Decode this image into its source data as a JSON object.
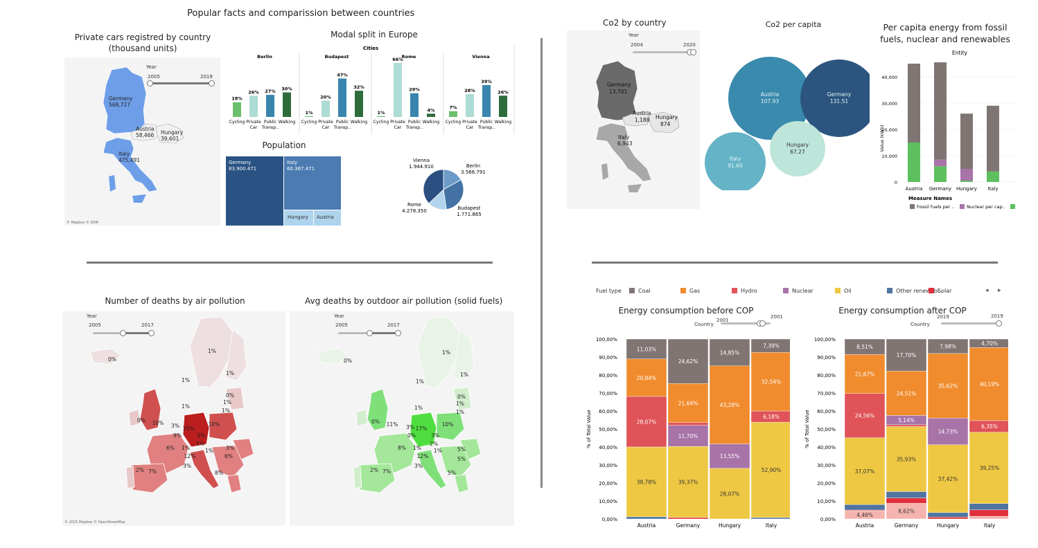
{
  "header_left": "Popular facts and comparission between countries",
  "cars": {
    "title_line1": "Private cars registred by country",
    "title_line2": "(thousand units)",
    "year_label": "Year",
    "year_min": "2005",
    "year_max": "2019",
    "labels": [
      {
        "country": "Germany",
        "value": "568,727"
      },
      {
        "country": "Austria",
        "value": "58,466"
      },
      {
        "country": "Hungary",
        "value": "39,601"
      },
      {
        "country": "Italy",
        "value": "475,491"
      }
    ],
    "credit": "© Mapbox © OSM"
  },
  "modal": {
    "title": "Modal split in Europe",
    "header": "Cities",
    "cities": [
      {
        "name": "Berlin",
        "values": [
          18,
          26,
          27,
          30
        ]
      },
      {
        "name": "Budapest",
        "values": [
          1,
          20,
          47,
          32
        ]
      },
      {
        "name": "Rome",
        "values": [
          1,
          66,
          29,
          4
        ]
      },
      {
        "name": "Vienna",
        "values": [
          7,
          28,
          39,
          26
        ]
      }
    ],
    "modes": [
      "Cycling",
      "Private Car",
      "Public Transp..",
      "Walking"
    ],
    "mode_lines": [
      [
        "Cycling"
      ],
      [
        "Private",
        "Car"
      ],
      [
        "Public",
        "Transp.."
      ],
      [
        "Walking"
      ]
    ],
    "colors": [
      "#6cbf6a",
      "#acdcd4",
      "#3a85ae",
      "#2e6b3d"
    ]
  },
  "population": {
    "title": "Population",
    "blocks": [
      {
        "name": "Germany",
        "value": "83.900.471"
      },
      {
        "name": "Italy",
        "value": "60.367.471"
      },
      {
        "name": "Hungary",
        "value": ""
      },
      {
        "name": "Austria",
        "value": ""
      }
    ],
    "pie": [
      {
        "name": "Vienna",
        "value": "1.944.910",
        "num": 1944910,
        "color": "#6c9bc8"
      },
      {
        "name": "Berlin",
        "value": "3.566.791",
        "num": 3566791,
        "color": "#4472a5"
      },
      {
        "name": "Budapest",
        "value": "1.771.865",
        "num": 1771865,
        "color": "#b1d3ec"
      },
      {
        "name": "Rome",
        "value": "4.278.350",
        "num": 4278350,
        "color": "#2a4f80"
      }
    ]
  },
  "co2_country": {
    "title": "Co2  by country",
    "year_label": "Year",
    "year_min": "2004",
    "year_max": "2020",
    "labels": [
      {
        "country": "Germany",
        "value": "13,701"
      },
      {
        "country": "Austria",
        "value": "1,188"
      },
      {
        "country": "Hungary",
        "value": "874"
      },
      {
        "country": "Italy",
        "value": "6,943"
      }
    ]
  },
  "co2_capita": {
    "title": "Co2 per capita",
    "bubbles": [
      {
        "name": "Austria",
        "value": "107.93",
        "color": "#3a8aad"
      },
      {
        "name": "Germany",
        "value": "131.51",
        "color": "#2b557f"
      },
      {
        "name": "Italy",
        "value": "91.60",
        "color": "#64b3c6"
      },
      {
        "name": "Hungary",
        "value": "67.27",
        "color": "#bde5da"
      }
    ]
  },
  "energy_capita": {
    "title_line1": "Per capita energy from fossil",
    "title_line2": "fuels, nuclear and renewables",
    "entity_label": "Entity",
    "ylabel": "Value (kWh)",
    "yticks": [
      "0",
      "10,000",
      "20,000",
      "30,000",
      "40,000"
    ],
    "countries": [
      "Austria",
      "Germany",
      "Hungary",
      "Italy"
    ],
    "fossil": [
      30000,
      37000,
      21000,
      25000
    ],
    "nuclear": [
      0,
      2500,
      4500,
      0
    ],
    "renewable": [
      15000,
      6000,
      500,
      4000
    ],
    "colors": [
      "#7f7572",
      "#a873a8",
      "#5ebf5e"
    ],
    "legend_title": "Measure Names",
    "legend": [
      "Fossil fuels per ..",
      "Nuclear per cap.."
    ]
  },
  "deaths_air": {
    "title": "Number of deaths by air pollution",
    "year_label": "Year",
    "year_min": "2005",
    "year_max": "2017",
    "credit": "© 2021 Mapbox © OpenStreetMap"
  },
  "deaths_solid": {
    "title": "Avg deaths by outdoor air pollution (solid fuels)",
    "year_label": "Year",
    "year_min": "2005",
    "year_max": "2017"
  },
  "fuel_legend": {
    "label": "Fuel type",
    "items": [
      {
        "name": "Coal",
        "color": "#807572"
      },
      {
        "name": "Gas",
        "color": "#f08c2e"
      },
      {
        "name": "Hydro",
        "color": "#e05358"
      },
      {
        "name": "Nuclear",
        "color": "#a874a8"
      },
      {
        "name": "Oil",
        "color": "#eec843"
      },
      {
        "name": "Other renewabl..",
        "color": "#4f74a0"
      },
      {
        "name": "Solar",
        "color": "#e0303a"
      }
    ]
  },
  "cop_before": {
    "title": "Energy consumption before COP",
    "country_label": "Country",
    "year": "2001",
    "ylabel": "% of Total Value",
    "yticks": [
      "0,00%",
      "10,00%",
      "20,00%",
      "30,00%",
      "40,00%",
      "50,00%",
      "60,00%",
      "70,00%",
      "80,00%",
      "90,00%",
      "100,00%"
    ],
    "countries": [
      "Austria",
      "Germany",
      "Hungary",
      "Italy"
    ],
    "stacks": [
      [
        {
          "f": "Other",
          "v": 1.2
        },
        {
          "f": "Oil",
          "v": 38.78,
          "l": "38,78%"
        },
        {
          "f": "Hydro",
          "v": 28.07,
          "l": "28,07%"
        },
        {
          "f": "Gas",
          "v": 20.84,
          "l": "20,84%"
        },
        {
          "f": "Coal",
          "v": 11.03,
          "l": "11,03%"
        }
      ],
      [
        {
          "f": "Solar",
          "v": 0.8
        },
        {
          "f": "Oil",
          "v": 39.37,
          "l": "39,37%"
        },
        {
          "f": "Nuclear",
          "v": 11.7,
          "l": "11,70%"
        },
        {
          "f": "Hydro",
          "v": 1.5
        },
        {
          "f": "Gas",
          "v": 21.64,
          "l": "21,64%"
        },
        {
          "f": "Coal",
          "v": 24.62,
          "l": "24,62%"
        }
      ],
      [
        {
          "f": "Oil",
          "v": 28.07,
          "l": "28,07%"
        },
        {
          "f": "Nuclear",
          "v": 13.55,
          "l": "13,55%"
        },
        {
          "f": "Gas",
          "v": 43.28,
          "l": "43,28%"
        },
        {
          "f": "Coal",
          "v": 14.85,
          "l": "14,85%"
        }
      ],
      [
        {
          "f": "Other",
          "v": 0.8
        },
        {
          "f": "Oil",
          "v": 52.9,
          "l": "52,90%"
        },
        {
          "f": "Hydro",
          "v": 6.18,
          "l": "6,18%"
        },
        {
          "f": "Gas",
          "v": 32.54,
          "l": "32,54%"
        },
        {
          "f": "Coal",
          "v": 7.39,
          "l": "7,39%"
        }
      ]
    ]
  },
  "cop_after": {
    "title": "Energy consumption after COP",
    "country_label": "Country",
    "year_min": "2019",
    "year_max": "2019",
    "ylabel": "% of Total Value",
    "yticks": [
      "0,00%",
      "10,00%",
      "20,00%",
      "30,00%",
      "40,00%",
      "50,00%",
      "60,00%",
      "70,00%",
      "80,00%",
      "90,00%",
      "100,00%"
    ],
    "countries": [
      "Austria",
      "Germany",
      "Hungary",
      "Italy"
    ],
    "stacks": [
      [
        {
          "f": "SolarLight",
          "v": 4.46,
          "l": "4,46%"
        },
        {
          "f": "Hydro2",
          "v": 0.5
        },
        {
          "f": "Other",
          "v": 3.0
        },
        {
          "f": "Oil",
          "v": 37.07,
          "l": "37,07%"
        },
        {
          "f": "Hydro",
          "v": 24.56,
          "l": "24,56%"
        },
        {
          "f": "Gas",
          "v": 21.67,
          "l": "21,67%"
        },
        {
          "f": "Coal",
          "v": 8.51,
          "l": "8,51%"
        }
      ],
      [
        {
          "f": "SolarLight",
          "v": 8.62,
          "l": "8,62%"
        },
        {
          "f": "Solar",
          "v": 3.0
        },
        {
          "f": "Other",
          "v": 3.5
        },
        {
          "f": "Oil",
          "v": 35.93,
          "l": "35,93%"
        },
        {
          "f": "Hydro",
          "v": 1.0
        },
        {
          "f": "Nuclear",
          "v": 5.14,
          "l": "5,14%"
        },
        {
          "f": "Gas",
          "v": 24.51,
          "l": "24,51%"
        },
        {
          "f": "Coal",
          "v": 17.7,
          "l": "17,70%"
        }
      ],
      [
        {
          "f": "Solar",
          "v": 1.0
        },
        {
          "f": "Other",
          "v": 2.5
        },
        {
          "f": "Oil",
          "v": 37.42,
          "l": "37,42%"
        },
        {
          "f": "Nuclear",
          "v": 14.73,
          "l": "14,73%"
        },
        {
          "f": "Gas",
          "v": 35.62,
          "l": "35,62%"
        },
        {
          "f": "Coal",
          "v": 7.98,
          "l": "7,98%"
        }
      ],
      [
        {
          "f": "SolarLight",
          "v": 1.5
        },
        {
          "f": "Solar",
          "v": 3.5
        },
        {
          "f": "Other",
          "v": 3.5
        },
        {
          "f": "Oil",
          "v": 39.25,
          "l": "39,25%"
        },
        {
          "f": "Hydro",
          "v": 6.35,
          "l": "6,35%"
        },
        {
          "f": "Gas",
          "v": 40.19,
          "l": "40,19%"
        },
        {
          "f": "Coal",
          "v": 4.7,
          "l": "4,70%"
        }
      ]
    ]
  },
  "fuel_colors": {
    "Coal": "#807572",
    "Gas": "#f08c2e",
    "Hydro": "#e05358",
    "Hydro2": "#e05358",
    "Nuclear": "#a874a8",
    "Oil": "#eec843",
    "Other": "#4f74a0",
    "Solar": "#e0303a",
    "SolarLight": "#f5b4ae"
  }
}
